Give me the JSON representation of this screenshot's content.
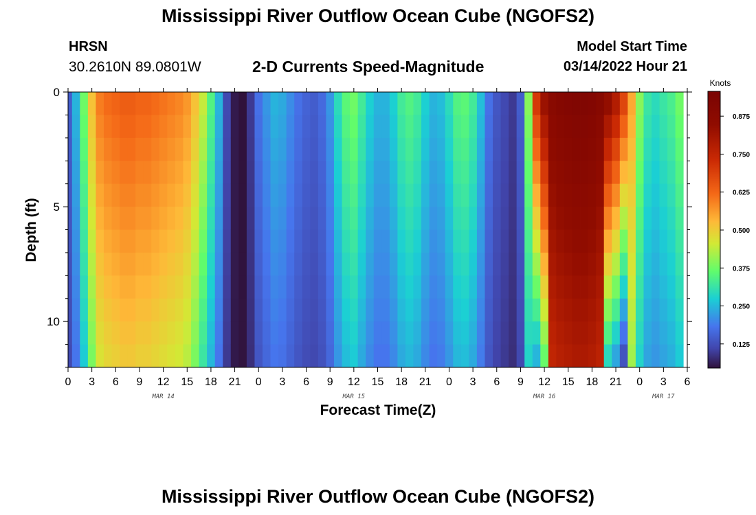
{
  "page": {
    "title": "Mississippi River Outflow Ocean Cube (NGOFS2)",
    "station_name": "HRSN",
    "station_coords": "30.2610N  89.0801W",
    "plot_title": "2-D Currents Speed-Magnitude",
    "model_start_label": "Model Start Time",
    "model_start_value": "03/14/2022 Hour 21",
    "second_title": "Mississippi River Outflow Ocean Cube (NGOFS2)"
  },
  "chart_data": {
    "type": "heatmap",
    "title": "2-D Currents Speed-Magnitude",
    "xlabel": "Forecast Time(Z)",
    "ylabel": "Depth (ft)",
    "colorbar_label": "Knots",
    "colorbar_ticks": [
      "0.125",
      "0.250",
      "0.375",
      "0.500",
      "0.625",
      "0.750",
      "0.875"
    ],
    "colorbar_range": [
      0.05,
      0.95
    ],
    "colormap": "turbo",
    "x_tick_labels": [
      "0",
      "3",
      "6",
      "9",
      "12",
      "15",
      "18",
      "21",
      "0",
      "3",
      "6",
      "9",
      "12",
      "15",
      "18",
      "21",
      "0",
      "3",
      "6",
      "9",
      "12",
      "15",
      "18",
      "21",
      "0",
      "3",
      "6"
    ],
    "x_range_hours": [
      0,
      78
    ],
    "day_labels": [
      "MAR 14",
      "MAR 15",
      "MAR 16",
      "MAR 17"
    ],
    "day_label_hours": [
      12,
      36,
      60,
      75
    ],
    "y_tick_labels": [
      "0",
      "5",
      "10"
    ],
    "y_range_ft": [
      0,
      12
    ],
    "y_inverted": true,
    "depth_levels_ft": [
      0.5,
      1.5,
      2.5,
      3.5,
      4.5,
      5.5,
      6.5,
      7.5,
      8.5,
      9.5,
      10.5,
      11.5
    ],
    "time_hours": [
      0,
      1,
      2,
      3,
      4,
      5,
      6,
      7,
      8,
      9,
      10,
      11,
      12,
      13,
      14,
      15,
      16,
      17,
      18,
      19,
      20,
      21,
      22,
      23,
      24,
      25,
      26,
      27,
      28,
      29,
      30,
      31,
      32,
      33,
      34,
      35,
      36,
      37,
      38,
      39,
      40,
      41,
      42,
      43,
      44,
      45,
      46,
      47,
      48,
      49,
      50,
      51,
      52,
      53,
      54,
      55,
      56,
      57,
      58,
      59,
      60,
      61,
      62,
      63,
      64,
      65,
      66,
      67,
      68,
      69,
      70,
      71,
      72,
      73,
      74,
      75,
      76,
      77
    ],
    "surface_speed_knots": [
      0.15,
      0.25,
      0.38,
      0.52,
      0.6,
      0.62,
      0.63,
      0.64,
      0.64,
      0.63,
      0.63,
      0.62,
      0.61,
      0.6,
      0.59,
      0.57,
      0.52,
      0.45,
      0.35,
      0.25,
      0.12,
      0.06,
      0.05,
      0.1,
      0.18,
      0.22,
      0.25,
      0.24,
      0.21,
      0.18,
      0.16,
      0.15,
      0.17,
      0.22,
      0.3,
      0.36,
      0.38,
      0.33,
      0.28,
      0.25,
      0.25,
      0.28,
      0.33,
      0.35,
      0.33,
      0.28,
      0.25,
      0.26,
      0.3,
      0.35,
      0.36,
      0.33,
      0.26,
      0.18,
      0.14,
      0.12,
      0.1,
      0.15,
      0.4,
      0.72,
      0.84,
      0.88,
      0.9,
      0.91,
      0.92,
      0.92,
      0.91,
      0.89,
      0.86,
      0.8,
      0.7,
      0.55,
      0.4,
      0.32,
      0.3,
      0.32,
      0.34,
      0.38
    ],
    "depth_profile_note": "speeds decrease gradually with depth in low-speed periods; high-speed band near MAR 16 narrows with depth"
  }
}
